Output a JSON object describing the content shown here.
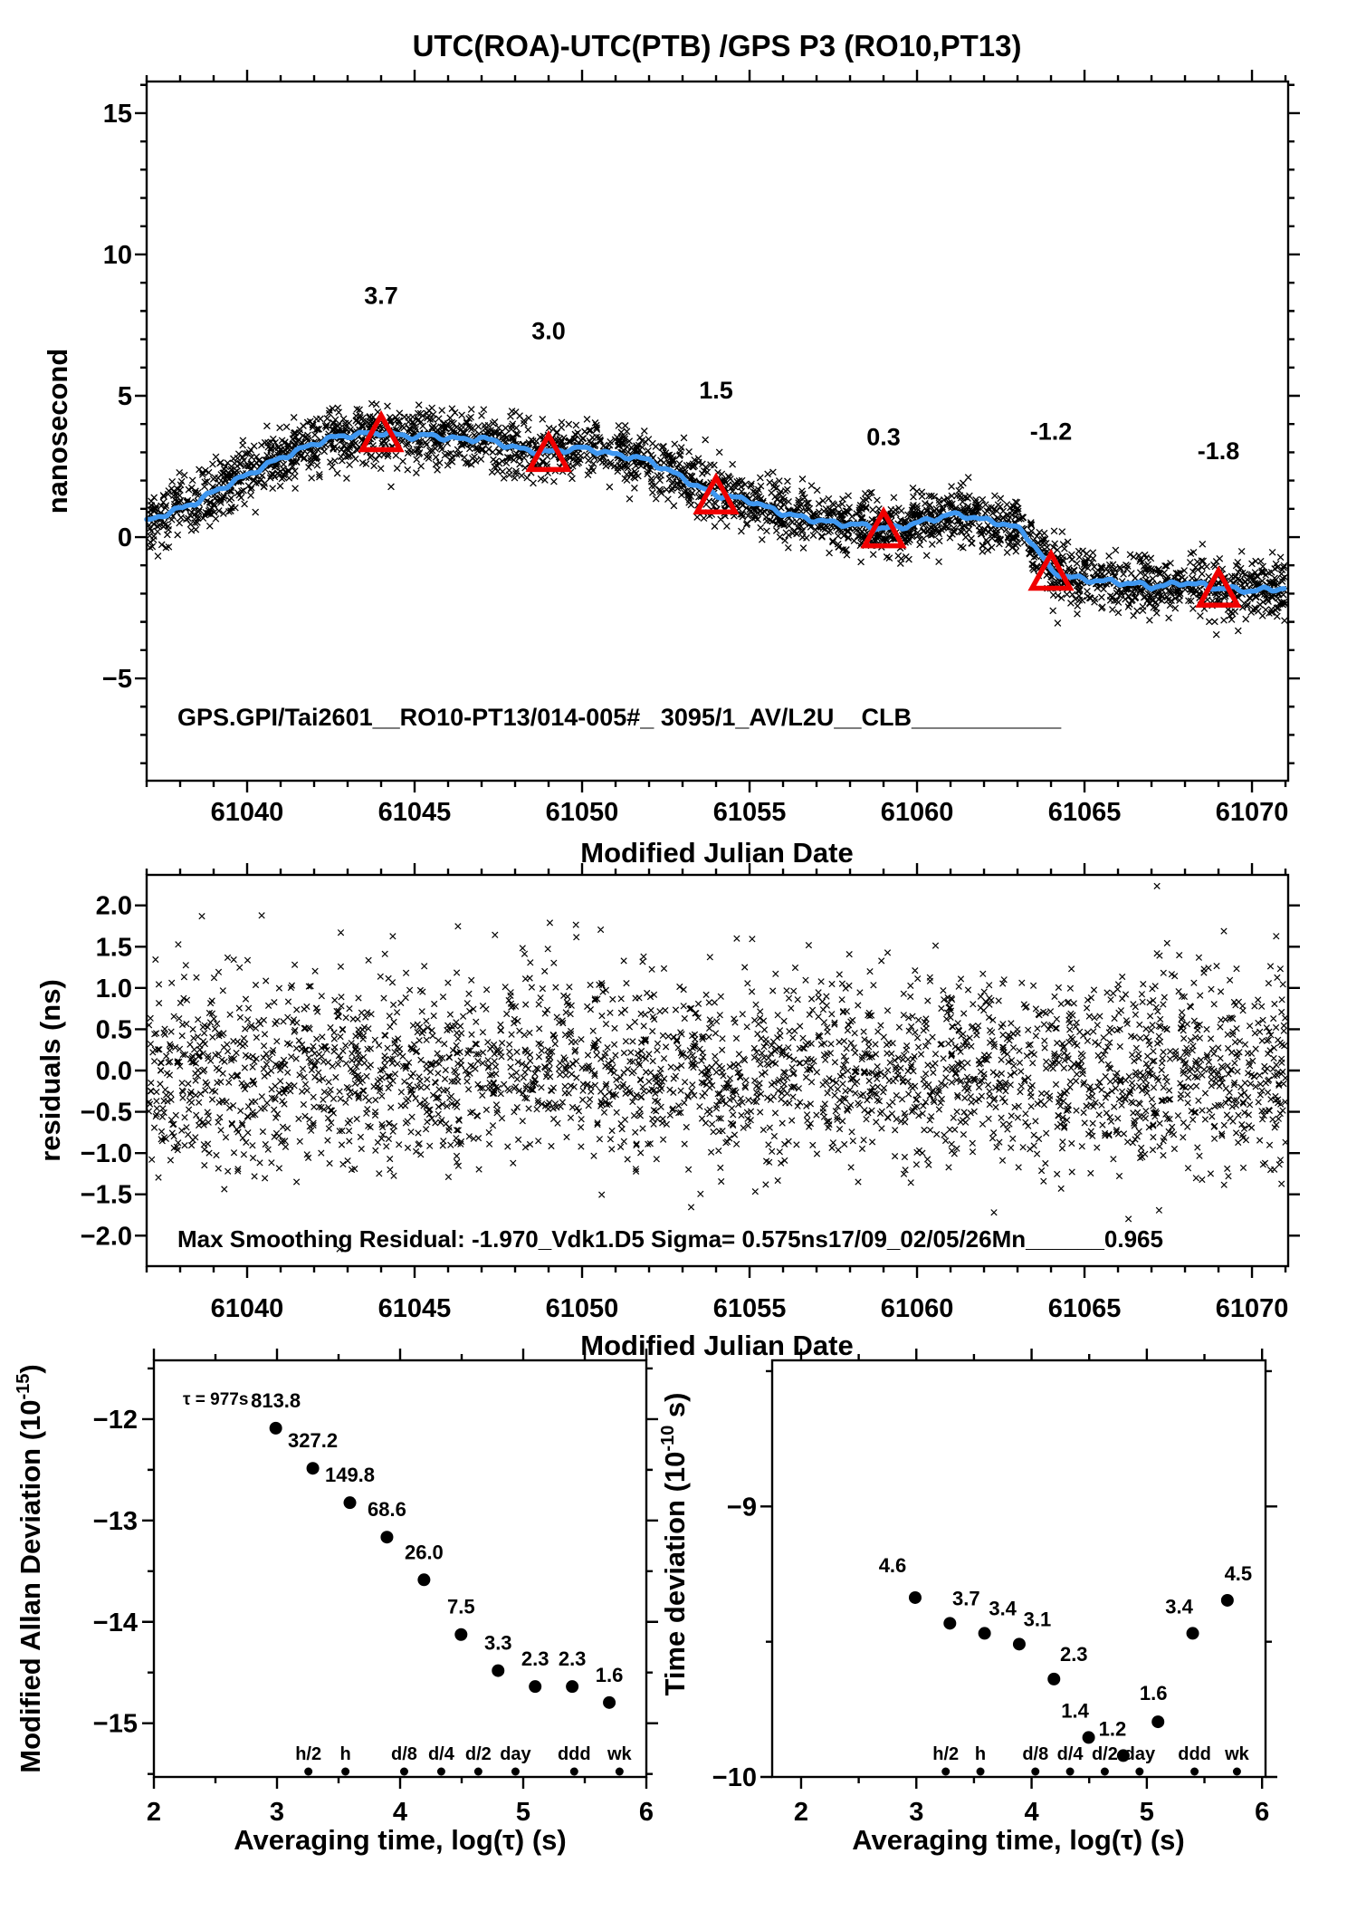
{
  "title": "UTC(ROA)-UTC(PTB)  /GPS  P3  (RO10,PT13)",
  "colors": {
    "marker_black": "#000000",
    "smooth_curve_blue": "#3f97f0",
    "annotation_red": "#f00000",
    "background": "#ffffff"
  },
  "chart_data": [
    {
      "id": "phase",
      "type": "scatter",
      "title": "UTC(ROA)-UTC(PTB)  /GPS  P3  (RO10,PT13)",
      "xlabel": "Modified Julian Date",
      "ylabel": "nanosecond",
      "xlim": [
        61037.0,
        61071.08
      ],
      "ylim": [
        -8.62,
        16.12
      ],
      "xticks_major": [
        61040,
        61045,
        61050,
        61055,
        61060,
        61065,
        61070
      ],
      "xtick_minor_step": 1,
      "yticks_major": [
        -5,
        0,
        5,
        10,
        15
      ],
      "ytick_minor_step": 1,
      "grid": false,
      "annotation": "GPS.GPI/Tai2601__RO10-PT13/014-005#_  3095/1_AV/L2U__CLB___________",
      "scatter_model": {
        "n": 2800,
        "sigma_ns": 0.52,
        "seed": 1234,
        "marker": "x"
      },
      "smoothed_line": {
        "x": [
          61037,
          61037.5,
          61038,
          61038.5,
          61039,
          61039.5,
          61040,
          61040.5,
          61041,
          61041.5,
          61042,
          61042.5,
          61043,
          61043.5,
          61044,
          61044.5,
          61045,
          61045.5,
          61046,
          61046.5,
          61047,
          61047.5,
          61048,
          61048.5,
          61049,
          61049.5,
          61050,
          61050.5,
          61051,
          61051.5,
          61052,
          61052.5,
          61053,
          61053.5,
          61054,
          61054.5,
          61055,
          61055.5,
          61056,
          61056.5,
          61057,
          61057.5,
          61058,
          61058.5,
          61059,
          61059.5,
          61060,
          61060.5,
          61061,
          61061.5,
          61062,
          61062.5,
          61063,
          61063.2,
          61063.5,
          61063.8,
          61064,
          61064.5,
          61065,
          61065.5,
          61066,
          61066.5,
          61067,
          61067.5,
          61068,
          61068.5,
          61069,
          61069.5,
          61070,
          61070.5,
          61071
        ],
        "y": [
          0.55,
          0.8,
          1.0,
          1.25,
          1.6,
          1.9,
          2.2,
          2.5,
          2.8,
          3.05,
          3.3,
          3.5,
          3.6,
          3.65,
          3.7,
          3.6,
          3.55,
          3.6,
          3.5,
          3.45,
          3.5,
          3.35,
          3.15,
          3.05,
          3.0,
          3.1,
          3.15,
          3.05,
          2.9,
          2.85,
          2.7,
          2.4,
          2.1,
          1.75,
          1.5,
          1.4,
          1.3,
          1.05,
          0.85,
          0.7,
          0.6,
          0.5,
          0.45,
          0.4,
          0.3,
          0.35,
          0.5,
          0.65,
          0.8,
          0.75,
          0.6,
          0.5,
          0.3,
          0.15,
          -0.3,
          -0.8,
          -1.2,
          -1.4,
          -1.5,
          -1.55,
          -1.6,
          -1.65,
          -1.75,
          -1.7,
          -1.6,
          -1.7,
          -1.8,
          -1.85,
          -1.9,
          -1.85,
          -1.8
        ],
        "wiggle_amp_ns": 0.07
      },
      "calibration_markers": [
        {
          "mjd": 61044,
          "value_ns": 3.7,
          "label": "3.7",
          "label_y_ns": 8.25
        },
        {
          "mjd": 61049,
          "value_ns": 3.0,
          "label": "3.0",
          "label_y_ns": 7.0
        },
        {
          "mjd": 61054,
          "value_ns": 1.5,
          "label": "1.5",
          "label_y_ns": 4.9
        },
        {
          "mjd": 61059,
          "value_ns": 0.3,
          "label": "0.3",
          "label_y_ns": 3.25
        },
        {
          "mjd": 61064,
          "value_ns": -1.2,
          "label": "-1.2",
          "label_y_ns": 3.45
        },
        {
          "mjd": 61069,
          "value_ns": -1.8,
          "label": "-1.8",
          "label_y_ns": 2.75
        }
      ]
    },
    {
      "id": "residuals",
      "type": "scatter",
      "xlabel": "Modified Julian Date",
      "ylabel": "residuals (ns)",
      "xlim": [
        61037.0,
        61071.08
      ],
      "ylim": [
        -2.37,
        2.37
      ],
      "xticks_major": [
        61040,
        61045,
        61050,
        61055,
        61060,
        61065,
        61070
      ],
      "xtick_minor_step": 1,
      "yticks_major": [
        2.0,
        1.5,
        1.0,
        0.5,
        0.0,
        -0.5,
        -1.0,
        -1.5,
        -2.0
      ],
      "grid": false,
      "annotation": "Max Smoothing Residual: -1.970_Vdk1.D5  Sigma= 0.575ns17/09_02/05/26Mn______0.965",
      "scatter_model": {
        "n": 2800,
        "sigma_ns": 0.575,
        "mean_ns": 0.0,
        "clip_ns": 2.25,
        "seed": 5678,
        "marker": "x"
      }
    },
    {
      "id": "mdev",
      "type": "scatter",
      "xlabel": "Averaging time, log(τ) (s)",
      "ylabel_prefix": "Modified Allan Deviation (10",
      "ylabel_exp": "-15",
      "ylabel_suffix": ")",
      "note": "τ = 977s",
      "xlim": [
        2.0,
        6.0
      ],
      "ylim": [
        -15.53,
        -11.42
      ],
      "xticks_major": [
        2,
        3,
        4,
        5,
        6
      ],
      "xtick_minor_step": 0.5,
      "yticks_major": [
        -12,
        -13,
        -14,
        -15
      ],
      "ytick_minor_step": 0.5,
      "log_tau": [
        2.99,
        3.291,
        3.592,
        3.893,
        4.194,
        4.495,
        4.796,
        5.097,
        5.398,
        5.699
      ],
      "values_1e15": [
        813.8,
        327.2,
        149.8,
        68.6,
        26.0,
        7.5,
        3.3,
        2.3,
        2.3,
        1.6
      ],
      "log_values": [
        -12.089,
        -12.485,
        -12.824,
        -13.164,
        -13.585,
        -14.125,
        -14.481,
        -14.638,
        -14.638,
        -14.796
      ],
      "value_labels": [
        "813.8",
        "327.2",
        "149.8",
        "68.6",
        "26.0",
        "7.5",
        "3.3",
        "2.3",
        "2.3",
        "1.6"
      ],
      "label_dx": [
        0,
        0,
        0,
        0,
        0,
        0,
        0,
        0,
        0,
        0
      ],
      "label_dy": [
        -31,
        -31,
        -31,
        -31,
        -31,
        -31,
        -31,
        -31,
        -31,
        -31
      ],
      "tau_categories": {
        "labels": [
          "h/2",
          "h",
          "d/8",
          "d/4",
          "d/2",
          "day",
          "ddd",
          "wk"
        ],
        "log_tau": [
          3.255,
          3.556,
          4.033,
          4.334,
          4.635,
          4.937,
          5.414,
          5.782
        ]
      }
    },
    {
      "id": "tdev",
      "type": "scatter",
      "xlabel": "Averaging time, log(τ) (s)",
      "ylabel_prefix": "Time deviation (10",
      "ylabel_exp": "-10",
      "ylabel_suffix": " s)",
      "xlim": [
        1.749,
        6.03
      ],
      "ylim": [
        -10.0,
        -8.46
      ],
      "xticks_major": [
        2,
        3,
        4,
        5,
        6
      ],
      "xtick_minor_step": 0.5,
      "yticks_major": [
        -9,
        -10
      ],
      "ytick_minor_step": 0.5,
      "log_tau": [
        2.99,
        3.291,
        3.592,
        3.893,
        4.194,
        4.495,
        4.796,
        5.097,
        5.398,
        5.699
      ],
      "values_1e10": [
        4.6,
        3.7,
        3.4,
        3.1,
        2.3,
        1.4,
        1.2,
        1.6,
        3.4,
        4.5
      ],
      "log_values": [
        -9.337,
        -9.432,
        -9.469,
        -9.509,
        -9.638,
        -9.854,
        -9.921,
        -9.796,
        -9.469,
        -9.347
      ],
      "value_labels": [
        "4.6",
        "3.7",
        "3.4",
        "3.1",
        "2.3",
        "1.4",
        "1.2",
        "1.6",
        "3.4",
        "4.5"
      ],
      "label_dx": [
        -25,
        18,
        20,
        20,
        22,
        -15,
        -12,
        -5,
        -15,
        12
      ],
      "label_dy": [
        -36,
        -28,
        -28,
        -28,
        -28,
        -30,
        -30,
        -32,
        -30,
        -30
      ],
      "tau_categories": {
        "labels": [
          "h/2",
          "h",
          "d/8",
          "d/4",
          "d/2",
          "day",
          "ddd",
          "wk"
        ],
        "log_tau": [
          3.255,
          3.556,
          4.033,
          4.334,
          4.635,
          4.937,
          5.414,
          5.782
        ]
      }
    }
  ]
}
